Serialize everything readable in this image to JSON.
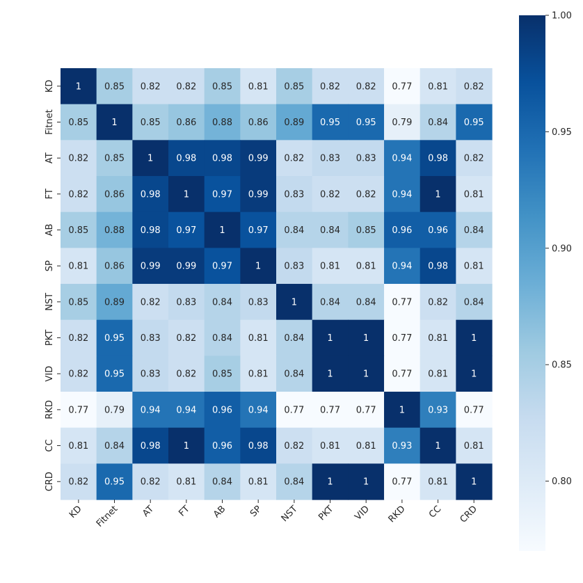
{
  "chart_data": {
    "type": "heatmap",
    "title": "",
    "xlabel": "",
    "ylabel": "",
    "x_categories": [
      "KD",
      "Fitnet",
      "AT",
      "FT",
      "AB",
      "SP",
      "NST",
      "PKT",
      "VID",
      "RKD",
      "CC",
      "CRD"
    ],
    "y_categories": [
      "KD",
      "Fitnet",
      "AT",
      "FT",
      "AB",
      "SP",
      "NST",
      "PKT",
      "VID",
      "RKD",
      "CC",
      "CRD"
    ],
    "cell_labels": [
      [
        "1",
        "0.85",
        "0.82",
        "0.82",
        "0.85",
        "0.81",
        "0.85",
        "0.82",
        "0.82",
        "0.77",
        "0.81",
        "0.82"
      ],
      [
        "0.85",
        "1",
        "0.85",
        "0.86",
        "0.88",
        "0.86",
        "0.89",
        "0.95",
        "0.95",
        "0.79",
        "0.84",
        "0.95"
      ],
      [
        "0.82",
        "0.85",
        "1",
        "0.98",
        "0.98",
        "0.99",
        "0.82",
        "0.83",
        "0.83",
        "0.94",
        "0.98",
        "0.82"
      ],
      [
        "0.82",
        "0.86",
        "0.98",
        "1",
        "0.97",
        "0.99",
        "0.83",
        "0.82",
        "0.82",
        "0.94",
        "1",
        "0.81"
      ],
      [
        "0.85",
        "0.88",
        "0.98",
        "0.97",
        "1",
        "0.97",
        "0.84",
        "0.84",
        "0.85",
        "0.96",
        "0.96",
        "0.84"
      ],
      [
        "0.81",
        "0.86",
        "0.99",
        "0.99",
        "0.97",
        "1",
        "0.83",
        "0.81",
        "0.81",
        "0.94",
        "0.98",
        "0.81"
      ],
      [
        "0.85",
        "0.89",
        "0.82",
        "0.83",
        "0.84",
        "0.83",
        "1",
        "0.84",
        "0.84",
        "0.77",
        "0.82",
        "0.84"
      ],
      [
        "0.82",
        "0.95",
        "0.83",
        "0.82",
        "0.84",
        "0.81",
        "0.84",
        "1",
        "1",
        "0.77",
        "0.81",
        "1"
      ],
      [
        "0.82",
        "0.95",
        "0.83",
        "0.82",
        "0.85",
        "0.81",
        "0.84",
        "1",
        "1",
        "0.77",
        "0.81",
        "1"
      ],
      [
        "0.77",
        "0.79",
        "0.94",
        "0.94",
        "0.96",
        "0.94",
        "0.77",
        "0.77",
        "0.77",
        "1",
        "0.93",
        "0.77"
      ],
      [
        "0.81",
        "0.84",
        "0.98",
        "1",
        "0.96",
        "0.98",
        "0.82",
        "0.81",
        "0.81",
        "0.93",
        "1",
        "0.81"
      ],
      [
        "0.82",
        "0.95",
        "0.82",
        "0.81",
        "0.84",
        "0.81",
        "0.84",
        "1",
        "1",
        "0.77",
        "0.81",
        "1"
      ]
    ],
    "colorbar": {
      "min": 0.77,
      "max": 1.0,
      "ticks": [
        0.8,
        0.85,
        0.9,
        0.95,
        1.0
      ],
      "tick_labels": [
        "0.80",
        "0.85",
        "0.90",
        "0.95",
        "1.00"
      ]
    },
    "colormap": "Blues",
    "colors": [
      "#f7fbff",
      "#deebf7",
      "#c6dbef",
      "#9ecae1",
      "#6baed6",
      "#4292c6",
      "#2171b5",
      "#08519c",
      "#08306b"
    ],
    "grid": false,
    "legend": "colorbar-right"
  }
}
